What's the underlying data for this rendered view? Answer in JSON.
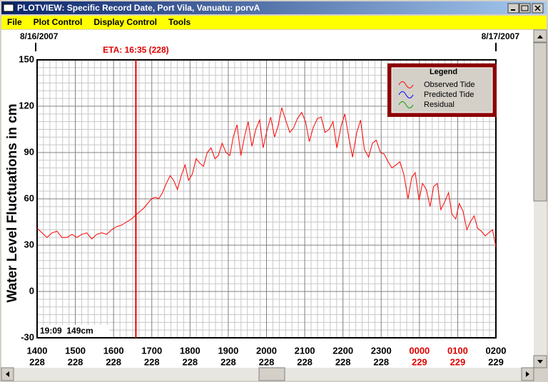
{
  "window": {
    "title": "PLOTVIEW: Specific Record Date, Port Vila, Vanuatu: porvA",
    "menu": [
      "File",
      "Plot Control",
      "Display Control",
      "Tools"
    ]
  },
  "chart_data": {
    "type": "line",
    "ylabel": "Water Level Fluctuations in cm",
    "date_left": "8/16/2007",
    "date_right": "8/17/2007",
    "annotation": {
      "text": "ETA: 16:35 (228)",
      "x": 16.5833,
      "color": "#e00000"
    },
    "readout": "19:09  149cm",
    "legend": {
      "title": "Legend",
      "position": "upper right",
      "entries": [
        {
          "name": "Observed Tide",
          "color": "#ff0000"
        },
        {
          "name": "Predicted Tide",
          "color": "#0000ff"
        },
        {
          "name": "Residual",
          "color": "#00a000"
        }
      ]
    },
    "ylim": [
      -30,
      150
    ],
    "yticks": [
      -30,
      0,
      30,
      60,
      90,
      120,
      150
    ],
    "xlim": [
      14,
      26
    ],
    "xticks": [
      {
        "value": 14,
        "label": "1400"
      },
      {
        "value": 15,
        "label": "1500"
      },
      {
        "value": 16,
        "label": "1600"
      },
      {
        "value": 17,
        "label": "1700"
      },
      {
        "value": 18,
        "label": "1800"
      },
      {
        "value": 19,
        "label": "1900"
      },
      {
        "value": 20,
        "label": "2000"
      },
      {
        "value": 21,
        "label": "2100"
      },
      {
        "value": 22,
        "label": "2200"
      },
      {
        "value": 23,
        "label": "2300"
      },
      {
        "value": 24,
        "label": "0000"
      },
      {
        "value": 25,
        "label": "0100"
      },
      {
        "value": 26,
        "label": "0200"
      }
    ],
    "xtick_days": [
      "228",
      "228",
      "228",
      "228",
      "228",
      "228",
      "228",
      "228",
      "228",
      "228",
      "229",
      "229",
      "229"
    ],
    "xtick_colors": [
      "#000",
      "#000",
      "#000",
      "#000",
      "#000",
      "#000",
      "#000",
      "#000",
      "#000",
      "#000",
      "#e00000",
      "#e00000",
      "#000"
    ],
    "grid": true,
    "minor_x_per_tick": 6,
    "minor_y_per_tick": 6,
    "x": [
      14.0,
      14.13,
      14.26,
      14.39,
      14.52,
      14.65,
      14.78,
      14.91,
      15.04,
      15.17,
      15.3,
      15.43,
      15.56,
      15.69,
      15.82,
      15.95,
      16.08,
      16.21,
      16.34,
      16.47,
      16.6,
      16.7,
      16.79,
      16.89,
      16.99,
      17.09,
      17.18,
      17.28,
      17.38,
      17.48,
      17.57,
      17.67,
      17.77,
      17.87,
      17.96,
      18.06,
      18.16,
      18.26,
      18.35,
      18.45,
      18.55,
      18.65,
      18.74,
      18.84,
      18.94,
      19.04,
      19.13,
      19.23,
      19.33,
      19.43,
      19.52,
      19.62,
      19.72,
      19.82,
      19.91,
      20.01,
      20.11,
      20.21,
      20.3,
      20.4,
      20.5,
      20.61,
      20.71,
      20.81,
      20.92,
      21.02,
      21.12,
      21.22,
      21.33,
      21.43,
      21.53,
      21.64,
      21.74,
      21.84,
      21.95,
      22.05,
      22.15,
      22.25,
      22.36,
      22.46,
      22.56,
      22.67,
      22.77,
      22.87,
      22.98,
      23.08,
      23.18,
      23.28,
      23.39,
      23.49,
      23.59,
      23.7,
      23.8,
      23.89,
      23.99,
      24.08,
      24.18,
      24.28,
      24.37,
      24.47,
      24.56,
      24.66,
      24.76,
      24.85,
      24.95,
      25.04,
      25.14,
      25.24,
      25.33,
      25.43,
      25.52,
      25.62,
      25.72,
      25.81,
      25.91,
      26.0
    ],
    "series": [
      {
        "name": "Observed Tide",
        "color": "#ff0000",
        "values": [
          41,
          38,
          35,
          38,
          39,
          35,
          35,
          37,
          35,
          37,
          38,
          34,
          37,
          38,
          37,
          40,
          42,
          43,
          45,
          47,
          50,
          52,
          54,
          57,
          60,
          61,
          60,
          64,
          70,
          75,
          72,
          66,
          75,
          82,
          72,
          76,
          86,
          83,
          81,
          90,
          93,
          86,
          88,
          96,
          90,
          88,
          100,
          108,
          88,
          101,
          110,
          94,
          105,
          111,
          93,
          104,
          113,
          100,
          107,
          119,
          111,
          103,
          106,
          112,
          116,
          110,
          97,
          106,
          112,
          113,
          103,
          105,
          110,
          93,
          107,
          115,
          100,
          87,
          103,
          111,
          92,
          87,
          96,
          98,
          90,
          89,
          84,
          80,
          82,
          84,
          76,
          60,
          74,
          77,
          59,
          70,
          66,
          55,
          68,
          70,
          53,
          58,
          64,
          50,
          47,
          57,
          52,
          40,
          45,
          49,
          41,
          39,
          36,
          38,
          40,
          29
        ]
      }
    ]
  }
}
